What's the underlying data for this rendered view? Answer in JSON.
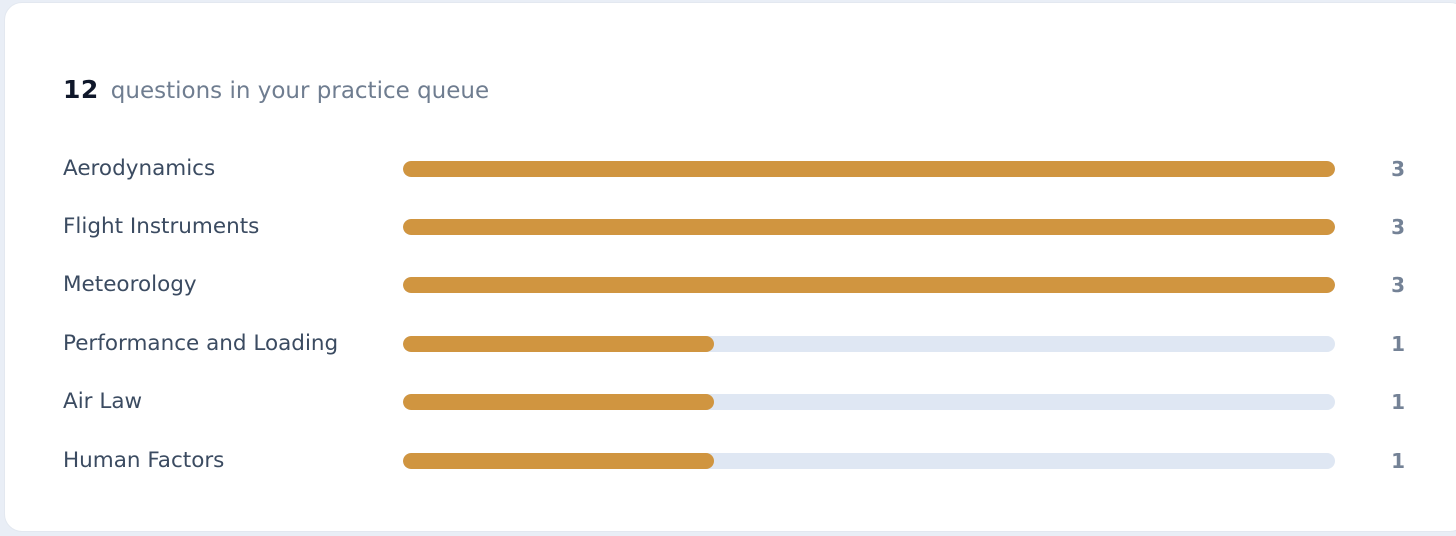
{
  "header": {
    "count": "12",
    "label": "questions in your practice queue"
  },
  "colors": {
    "bar_fill": "#d09540",
    "bar_track": "#dfe7f3"
  },
  "topics": [
    {
      "label": "Aerodynamics",
      "count": "3",
      "fill_fraction": 1.0
    },
    {
      "label": "Flight Instruments",
      "count": "3",
      "fill_fraction": 1.0
    },
    {
      "label": "Meteorology",
      "count": "3",
      "fill_fraction": 1.0
    },
    {
      "label": "Performance and Loading",
      "count": "1",
      "fill_fraction": 0.3333
    },
    {
      "label": "Air Law",
      "count": "1",
      "fill_fraction": 0.3333
    },
    {
      "label": "Human Factors",
      "count": "1",
      "fill_fraction": 0.3333
    }
  ]
}
